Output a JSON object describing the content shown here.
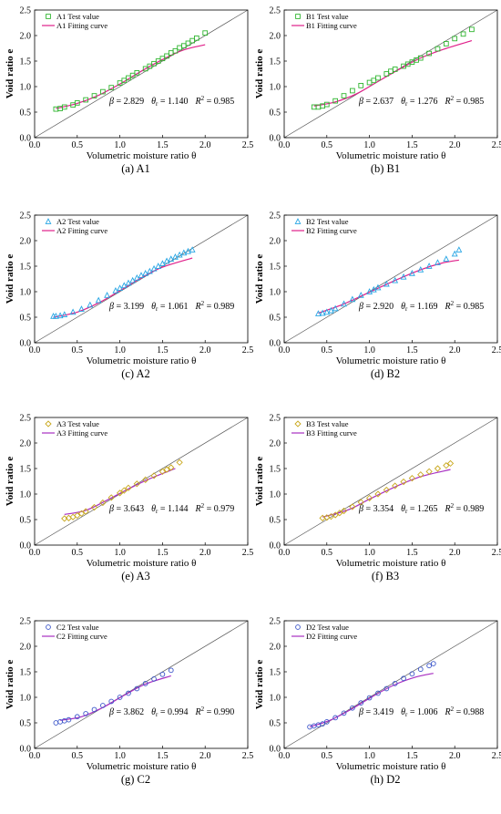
{
  "chart_data": [
    {
      "type": "scatter",
      "caption": "(a) A1",
      "xlabel": "Volumetric moisture  ratio θ",
      "ylabel": "Void ratio e",
      "xlim": [
        0,
        2.5
      ],
      "ylim": [
        0,
        2.5
      ],
      "xticks": [
        "0.0",
        "0.5",
        "1.0",
        "1.5",
        "2.0",
        "2.5"
      ],
      "yticks": [
        "0.0",
        "0.5",
        "1.0",
        "1.5",
        "2.0",
        "2.5"
      ],
      "reference_line": "y = x",
      "marker": "square",
      "marker_color": "#2fb52f",
      "curve_color": "#e0208a",
      "legend": [
        "A1 Test value",
        "A1 Fitting curve"
      ],
      "params": {
        "beta": "2.829",
        "theta_r": "1.140",
        "r2": "0.985"
      },
      "test_values": {
        "x": [
          0.25,
          0.3,
          0.35,
          0.45,
          0.5,
          0.6,
          0.7,
          0.8,
          0.9,
          1.0,
          1.05,
          1.1,
          1.15,
          1.2,
          1.3,
          1.35,
          1.4,
          1.45,
          1.5,
          1.55,
          1.6,
          1.65,
          1.7,
          1.75,
          1.8,
          1.85,
          1.9,
          2.0
        ],
        "y": [
          0.56,
          0.57,
          0.6,
          0.64,
          0.68,
          0.74,
          0.82,
          0.9,
          0.98,
          1.07,
          1.12,
          1.17,
          1.22,
          1.27,
          1.35,
          1.4,
          1.45,
          1.5,
          1.55,
          1.6,
          1.66,
          1.7,
          1.76,
          1.8,
          1.85,
          1.9,
          1.95,
          2.05
        ]
      },
      "fitting_curve": {
        "x": [
          0.25,
          0.5,
          0.75,
          1.0,
          1.25,
          1.5,
          1.75,
          2.0
        ],
        "y": [
          0.57,
          0.67,
          0.83,
          1.05,
          1.3,
          1.53,
          1.72,
          1.82
        ]
      }
    },
    {
      "type": "scatter",
      "caption": "(b) B1",
      "xlabel": "Volumetric moisture  ratio θ",
      "ylabel": "Void ratio e",
      "xlim": [
        0,
        2.5
      ],
      "ylim": [
        0,
        2.5
      ],
      "xticks": [
        "0.0",
        "0.5",
        "1.0",
        "1.5",
        "2.0",
        "2.5"
      ],
      "yticks": [
        "0.0",
        "0.5",
        "1.0",
        "1.5",
        "2.0",
        "2.5"
      ],
      "reference_line": "y = x",
      "marker": "square",
      "marker_color": "#2fb52f",
      "curve_color": "#e0208a",
      "legend": [
        "B1 Test value",
        "B1 Fitting curve"
      ],
      "params": {
        "beta": "2.637",
        "theta_r": "1.276",
        "r2": "0.985"
      },
      "test_values": {
        "x": [
          0.35,
          0.4,
          0.45,
          0.5,
          0.6,
          0.7,
          0.8,
          0.9,
          1.0,
          1.05,
          1.1,
          1.2,
          1.25,
          1.3,
          1.4,
          1.45,
          1.5,
          1.55,
          1.6,
          1.7,
          1.8,
          1.9,
          2.0,
          2.1,
          2.2
        ],
        "y": [
          0.6,
          0.6,
          0.62,
          0.65,
          0.72,
          0.82,
          0.92,
          1.02,
          1.08,
          1.12,
          1.17,
          1.25,
          1.3,
          1.34,
          1.4,
          1.44,
          1.48,
          1.52,
          1.56,
          1.65,
          1.74,
          1.84,
          1.94,
          2.03,
          2.12
        ]
      },
      "fitting_curve": {
        "x": [
          0.35,
          0.6,
          0.85,
          1.1,
          1.35,
          1.6,
          1.85,
          2.2
        ],
        "y": [
          0.62,
          0.7,
          0.86,
          1.1,
          1.34,
          1.56,
          1.72,
          1.9
        ]
      }
    },
    {
      "type": "scatter",
      "caption": "(c) A2",
      "xlabel": "Volumetric moisture  ratio θ",
      "ylabel": "Void ratio e",
      "xlim": [
        0,
        2.5
      ],
      "ylim": [
        0,
        2.5
      ],
      "xticks": [
        "0.0",
        "0.5",
        "1.0",
        "1.5",
        "2.0",
        "2.5"
      ],
      "yticks": [
        "0.0",
        "0.5",
        "1.0",
        "1.5",
        "2.0",
        "2.5"
      ],
      "reference_line": "y = x",
      "marker": "triangle",
      "marker_color": "#26a5e4",
      "curve_color": "#e0208a",
      "legend": [
        "A2 Test value",
        "A2 Fitting curve"
      ],
      "params": {
        "beta": "3.199",
        "theta_r": "1.061",
        "r2": "0.989"
      },
      "test_values": {
        "x": [
          0.22,
          0.25,
          0.3,
          0.35,
          0.45,
          0.55,
          0.65,
          0.75,
          0.85,
          0.95,
          1.0,
          1.05,
          1.1,
          1.15,
          1.2,
          1.25,
          1.3,
          1.35,
          1.4,
          1.45,
          1.5,
          1.55,
          1.6,
          1.65,
          1.7,
          1.75,
          1.8,
          1.85
        ],
        "y": [
          0.52,
          0.52,
          0.53,
          0.55,
          0.6,
          0.66,
          0.74,
          0.83,
          0.93,
          1.02,
          1.07,
          1.12,
          1.17,
          1.22,
          1.27,
          1.32,
          1.36,
          1.4,
          1.45,
          1.5,
          1.55,
          1.6,
          1.64,
          1.68,
          1.72,
          1.76,
          1.79,
          1.82
        ]
      },
      "fitting_curve": {
        "x": [
          0.22,
          0.5,
          0.75,
          1.0,
          1.25,
          1.5,
          1.85
        ],
        "y": [
          0.5,
          0.6,
          0.78,
          1.02,
          1.27,
          1.48,
          1.66
        ]
      }
    },
    {
      "type": "scatter",
      "caption": "(d) B2",
      "xlabel": "Volumetric moisture  ratio θ",
      "ylabel": "Void ratio e",
      "xlim": [
        0,
        2.5
      ],
      "ylim": [
        0,
        2.5
      ],
      "xticks": [
        "0.0",
        "0.5",
        "1.0",
        "1.5",
        "2.0",
        "2.5"
      ],
      "yticks": [
        "0.0",
        "0.5",
        "1.0",
        "1.5",
        "2.0",
        "2.5"
      ],
      "reference_line": "y = x",
      "marker": "triangle",
      "marker_color": "#26a5e4",
      "curve_color": "#e0208a",
      "legend": [
        "B2 Test value",
        "B2 Fitting curve"
      ],
      "params": {
        "beta": "2.920",
        "theta_r": "1.169",
        "r2": "0.985"
      },
      "test_values": {
        "x": [
          0.4,
          0.45,
          0.5,
          0.55,
          0.6,
          0.7,
          0.8,
          0.9,
          1.0,
          1.05,
          1.1,
          1.2,
          1.3,
          1.4,
          1.5,
          1.6,
          1.7,
          1.8,
          1.9,
          2.0,
          2.05
        ],
        "y": [
          0.57,
          0.58,
          0.6,
          0.63,
          0.67,
          0.76,
          0.85,
          0.93,
          1.0,
          1.04,
          1.08,
          1.15,
          1.22,
          1.29,
          1.36,
          1.43,
          1.5,
          1.57,
          1.64,
          1.74,
          1.82
        ]
      },
      "fitting_curve": {
        "x": [
          0.4,
          0.7,
          1.0,
          1.3,
          1.6,
          1.85,
          2.05
        ],
        "y": [
          0.58,
          0.76,
          0.99,
          1.22,
          1.43,
          1.56,
          1.62
        ]
      }
    },
    {
      "type": "scatter",
      "caption": "(e) A3",
      "xlabel": "Volumetric moisture  ratio θ",
      "ylabel": "Void ratio e",
      "xlim": [
        0,
        2.5
      ],
      "ylim": [
        0,
        2.5
      ],
      "xticks": [
        "0.0",
        "0.5",
        "1.0",
        "1.5",
        "2.0",
        "2.5"
      ],
      "yticks": [
        "0.0",
        "0.5",
        "1.0",
        "1.5",
        "2.0",
        "2.5"
      ],
      "reference_line": "y = x",
      "marker": "diamond",
      "marker_color": "#c9a81e",
      "curve_color": "#a82fc2",
      "legend": [
        "A3 Test value",
        "A3 Fitting curve"
      ],
      "params": {
        "beta": "3.643",
        "theta_r": "1.144",
        "r2": "0.979"
      },
      "test_values": {
        "x": [
          0.35,
          0.4,
          0.45,
          0.5,
          0.55,
          0.6,
          0.7,
          0.8,
          0.9,
          1.0,
          1.05,
          1.1,
          1.2,
          1.3,
          1.4,
          1.5,
          1.55,
          1.6,
          1.7
        ],
        "y": [
          0.52,
          0.53,
          0.55,
          0.58,
          0.62,
          0.66,
          0.74,
          0.83,
          0.93,
          1.02,
          1.07,
          1.12,
          1.2,
          1.28,
          1.36,
          1.44,
          1.48,
          1.52,
          1.62
        ]
      },
      "fitting_curve": {
        "x": [
          0.35,
          0.6,
          0.85,
          1.1,
          1.35,
          1.65
        ],
        "y": [
          0.6,
          0.68,
          0.88,
          1.1,
          1.3,
          1.5
        ]
      }
    },
    {
      "type": "scatter",
      "caption": "(f) B3",
      "xlabel": "Volumetric moisture  ratio θ",
      "ylabel": "Void ratio e",
      "xlim": [
        0,
        2.5
      ],
      "ylim": [
        0,
        2.5
      ],
      "xticks": [
        "0.0",
        "0.5",
        "1.0",
        "1.5",
        "2.0",
        "2.5"
      ],
      "yticks": [
        "0.0",
        "0.5",
        "1.0",
        "1.5",
        "2.0",
        "2.5"
      ],
      "reference_line": "y = x",
      "marker": "diamond",
      "marker_color": "#c9a81e",
      "curve_color": "#a82fc2",
      "legend": [
        "B3 Test value",
        "B3 Fitting curve"
      ],
      "params": {
        "beta": "3.354",
        "theta_r": "1.265",
        "r2": "0.989"
      },
      "test_values": {
        "x": [
          0.45,
          0.5,
          0.55,
          0.6,
          0.65,
          0.7,
          0.8,
          0.9,
          1.0,
          1.1,
          1.2,
          1.3,
          1.4,
          1.5,
          1.6,
          1.7,
          1.8,
          1.9,
          1.95
        ],
        "y": [
          0.53,
          0.54,
          0.56,
          0.59,
          0.63,
          0.67,
          0.75,
          0.84,
          0.92,
          1.0,
          1.08,
          1.16,
          1.24,
          1.31,
          1.38,
          1.44,
          1.5,
          1.56,
          1.6
        ]
      },
      "fitting_curve": {
        "x": [
          0.45,
          0.75,
          1.0,
          1.3,
          1.6,
          1.95
        ],
        "y": [
          0.55,
          0.69,
          0.9,
          1.14,
          1.34,
          1.48
        ]
      }
    },
    {
      "type": "scatter",
      "caption": "(g) C2",
      "xlabel": "Volumetric moisture  ratio θ",
      "ylabel": "Void ratio e",
      "xlim": [
        0,
        2.5
      ],
      "ylim": [
        0,
        2.5
      ],
      "xticks": [
        "0.0",
        "0.5",
        "1.0",
        "1.5",
        "2.0",
        "2.5"
      ],
      "yticks": [
        "0.0",
        "0.5",
        "1.0",
        "1.5",
        "2.0",
        "2.5"
      ],
      "reference_line": "y = x",
      "marker": "circle",
      "marker_color": "#3a55c9",
      "curve_color": "#a82fc2",
      "legend": [
        "C2 Test value",
        "C2 Fitting curve"
      ],
      "params": {
        "beta": "3.862",
        "theta_r": "0.994",
        "r2": "0.990"
      },
      "test_values": {
        "x": [
          0.25,
          0.3,
          0.35,
          0.4,
          0.5,
          0.6,
          0.7,
          0.8,
          0.9,
          1.0,
          1.1,
          1.2,
          1.3,
          1.4,
          1.5,
          1.6
        ],
        "y": [
          0.5,
          0.52,
          0.54,
          0.56,
          0.62,
          0.68,
          0.76,
          0.84,
          0.92,
          1.0,
          1.08,
          1.17,
          1.27,
          1.36,
          1.45,
          1.53
        ]
      },
      "fitting_curve": {
        "x": [
          0.3,
          0.55,
          0.8,
          1.05,
          1.3,
          1.6
        ],
        "y": [
          0.55,
          0.62,
          0.8,
          1.04,
          1.26,
          1.42
        ]
      }
    },
    {
      "type": "scatter",
      "caption": "(h) D2",
      "xlabel": "Volumetric moisture  ratio θ",
      "ylabel": "Void ratio e",
      "xlim": [
        0,
        2.5
      ],
      "ylim": [
        0,
        2.5
      ],
      "xticks": [
        "0.0",
        "0.5",
        "1.0",
        "1.5",
        "2.0",
        "2.5"
      ],
      "yticks": [
        "0.0",
        "0.5",
        "1.0",
        "1.5",
        "2.0",
        "2.5"
      ],
      "reference_line": "y = x",
      "marker": "circle",
      "marker_color": "#3a55c9",
      "curve_color": "#a82fc2",
      "legend": [
        "D2 Test value",
        "D2 Fitting curve"
      ],
      "params": {
        "beta": "3.419",
        "theta_r": "1.006",
        "r2": "0.988"
      },
      "test_values": {
        "x": [
          0.3,
          0.35,
          0.4,
          0.45,
          0.5,
          0.6,
          0.7,
          0.8,
          0.9,
          1.0,
          1.1,
          1.2,
          1.3,
          1.4,
          1.5,
          1.6,
          1.7,
          1.75
        ],
        "y": [
          0.42,
          0.44,
          0.46,
          0.48,
          0.52,
          0.6,
          0.69,
          0.79,
          0.89,
          0.99,
          1.08,
          1.17,
          1.27,
          1.37,
          1.46,
          1.55,
          1.62,
          1.66
        ]
      },
      "fitting_curve": {
        "x": [
          0.3,
          0.55,
          0.8,
          1.05,
          1.3,
          1.55,
          1.75
        ],
        "y": [
          0.42,
          0.56,
          0.78,
          1.03,
          1.25,
          1.4,
          1.47
        ]
      }
    }
  ]
}
